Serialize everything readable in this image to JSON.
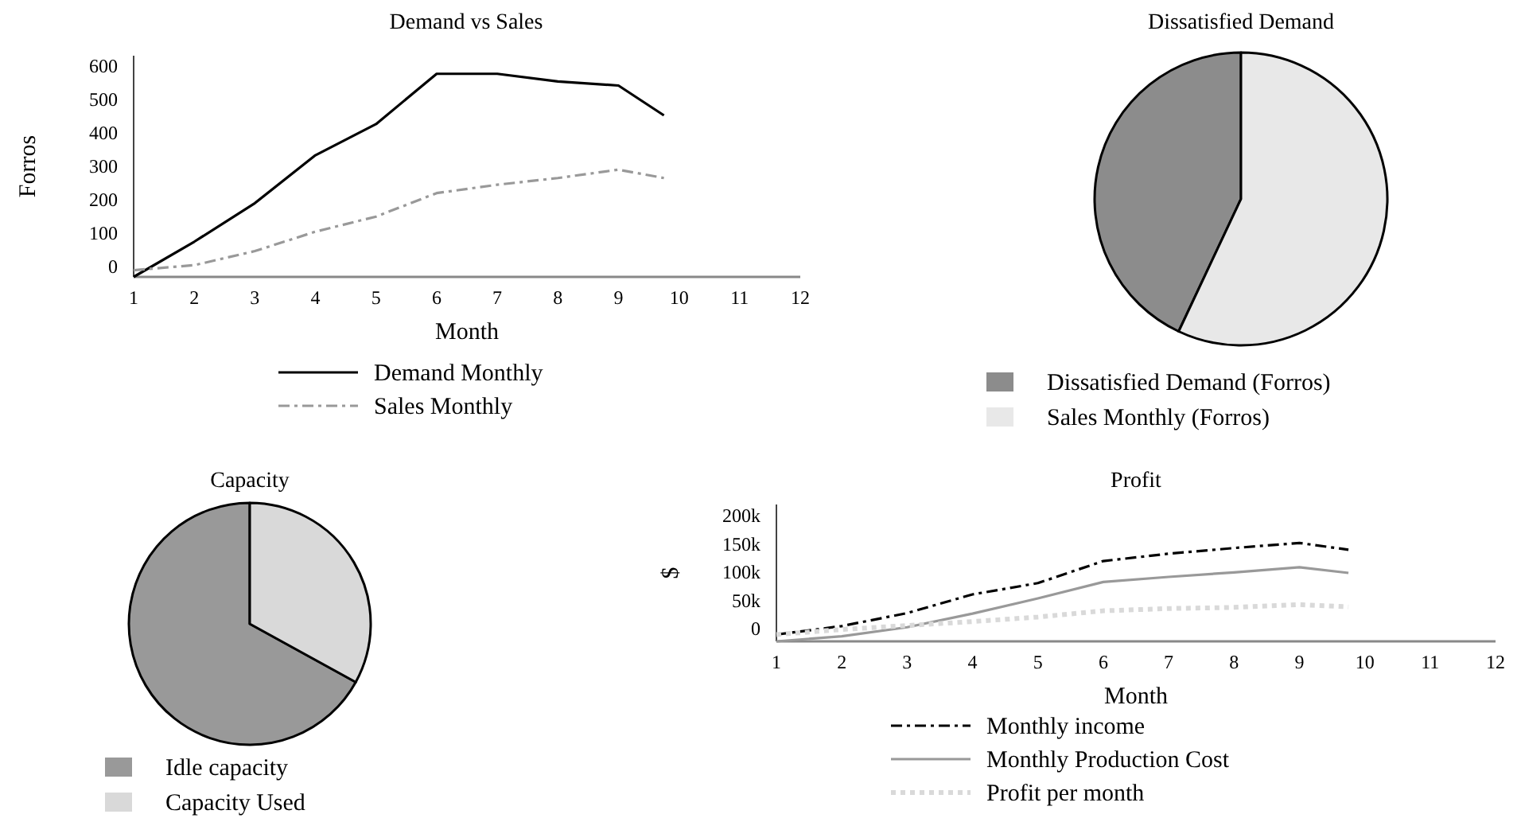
{
  "chart_data": [
    {
      "type": "line",
      "title": "Demand vs Sales",
      "xlabel": "Month",
      "ylabel": "Forros",
      "x": [
        1,
        2,
        3,
        4,
        5,
        6,
        7,
        8,
        9,
        9.75
      ],
      "xlim": [
        1,
        12
      ],
      "xticks": [
        1,
        2,
        3,
        4,
        5,
        6,
        7,
        8,
        9,
        10,
        11,
        12
      ],
      "ylim": [
        -30,
        630
      ],
      "yticks": [
        0,
        100,
        200,
        300,
        400,
        500,
        600
      ],
      "legend": "bottom",
      "series": [
        {
          "name": "Demand Monthly",
          "color": "#000000",
          "line_style": "solid",
          "values": [
            -30,
            75,
            190,
            333,
            426,
            576,
            576,
            553,
            541,
            452
          ]
        },
        {
          "name": "Sales Monthly",
          "color": "#999999",
          "line_style": "dashed",
          "values": [
            -10,
            5,
            47,
            105,
            150,
            220,
            245,
            265,
            290,
            265
          ]
        }
      ]
    },
    {
      "type": "pie",
      "title": "Dissatisfied Demand",
      "categories": [
        "Dissatisfied Demand (Forros)",
        "Sales Monthly (Forros)"
      ],
      "values": [
        43,
        57
      ],
      "colors": [
        "#8c8c8c",
        "#e8e8e8"
      ],
      "legend": "bottom"
    },
    {
      "type": "pie",
      "title": "Capacity",
      "categories": [
        "Idle capacity",
        "Capacity Used"
      ],
      "values": [
        67,
        33
      ],
      "colors": [
        "#999999",
        "#d9d9d9"
      ],
      "legend": "bottom"
    },
    {
      "type": "line",
      "title": "Profit",
      "xlabel": "Month",
      "ylabel": "$",
      "x": [
        1,
        2,
        3,
        4,
        5,
        6,
        7,
        8,
        9,
        9.75
      ],
      "xlim": [
        1,
        12
      ],
      "xticks": [
        1,
        2,
        3,
        4,
        5,
        6,
        7,
        8,
        9,
        10,
        11,
        12
      ],
      "ylim": [
        -22000,
        220000
      ],
      "yticks": [
        0,
        {
          "value": 50000,
          "label": "50k"
        },
        {
          "value": 100000,
          "label": "100k"
        },
        {
          "value": 150000,
          "label": "150k"
        },
        {
          "value": 200000,
          "label": "200k"
        }
      ],
      "legend": "bottom",
      "series": [
        {
          "name": "Monthly income",
          "color": "#000000",
          "line_style": "dashed",
          "values": [
            -10000,
            5000,
            28000,
            61000,
            81000,
            120000,
            133000,
            143000,
            152000,
            140000
          ]
        },
        {
          "name": "Monthly Production Cost",
          "color": "#999999",
          "line_style": "solid",
          "values": [
            -22000,
            -13000,
            3000,
            27000,
            54000,
            83000,
            92000,
            100000,
            109000,
            99000
          ]
        },
        {
          "name": "Profit per month",
          "color": "#d9d9d9",
          "line_style": "dotted",
          "values": [
            -10000,
            -1000,
            6000,
            13000,
            21000,
            32000,
            36000,
            38000,
            43000,
            39000
          ]
        }
      ]
    }
  ]
}
